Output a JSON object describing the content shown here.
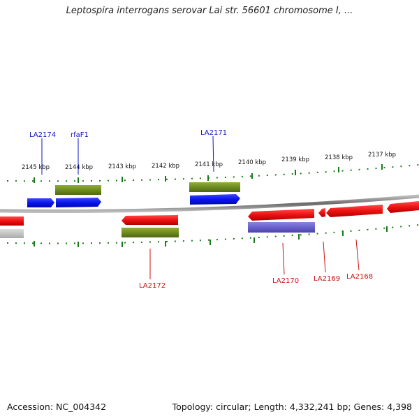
{
  "title": "Leptospira interrogans serovar Lai str. 56601 chromosome I, ...",
  "footer": {
    "accession": "Accession: NC_004342",
    "topology": "Topology: circular; Length: 4,332,241 bp; Genes: 4,398"
  },
  "colors": {
    "forward_gene": "#0a14f0",
    "reverse_gene": "#ee1111",
    "feature_green": "#6e8c22",
    "feature_purple": "#6a62cc",
    "feature_gray": "#bbbbbb",
    "backbone": "#7a7a7a",
    "tick": "#1a7a1a",
    "label_forward": "#0a14c8",
    "label_reverse": "#cc1111"
  },
  "scale_labels": [
    "2145 kbp",
    "2144 kbp",
    "2143 kbp",
    "2142 kbp",
    "2141 kbp",
    "2140 kbp",
    "2139 kbp",
    "2138 kbp",
    "2137 kbp"
  ],
  "gene_labels_top": [
    "LA2174",
    "rfaF1",
    "LA2171"
  ],
  "gene_labels_bottom": [
    "LA2172",
    "LA2170",
    "LA2169",
    "LA2168"
  ]
}
